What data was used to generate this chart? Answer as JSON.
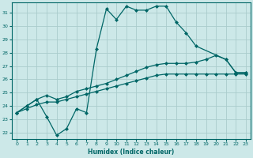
{
  "xlabel": "Humidex (Indice chaleur)",
  "bg_color": "#cce8e8",
  "grid_color": "#aacccc",
  "line_color": "#006666",
  "xlim": [
    -0.5,
    23.5
  ],
  "ylim": [
    21.5,
    31.8
  ],
  "yticks": [
    22,
    23,
    24,
    25,
    26,
    27,
    28,
    29,
    30,
    31
  ],
  "xticks": [
    0,
    1,
    2,
    3,
    4,
    5,
    6,
    7,
    8,
    9,
    10,
    11,
    12,
    13,
    14,
    15,
    16,
    17,
    18,
    19,
    20,
    21,
    22,
    23
  ],
  "line1_x": [
    0,
    1,
    2,
    3,
    4,
    5,
    6,
    7,
    8,
    9,
    10,
    11,
    12,
    13,
    14,
    15,
    16,
    17,
    18,
    21,
    22,
    23
  ],
  "line1_y": [
    23.5,
    24.0,
    24.5,
    23.2,
    21.8,
    22.3,
    23.8,
    23.5,
    28.3,
    31.3,
    30.5,
    31.5,
    31.2,
    31.2,
    31.5,
    31.5,
    30.3,
    29.5,
    28.5,
    27.5,
    26.5,
    26.5
  ],
  "line2_x": [
    0,
    1,
    2,
    3,
    4,
    5,
    6,
    7,
    8,
    9,
    10,
    11,
    12,
    13,
    14,
    15,
    16,
    17,
    18,
    19,
    20,
    21,
    22,
    23
  ],
  "line2_y": [
    23.5,
    24.0,
    24.5,
    24.8,
    24.5,
    24.7,
    25.1,
    25.3,
    25.5,
    25.7,
    26.0,
    26.3,
    26.6,
    26.9,
    27.1,
    27.2,
    27.2,
    27.2,
    27.3,
    27.5,
    27.8,
    27.5,
    26.5,
    26.5
  ],
  "line3_x": [
    0,
    1,
    2,
    3,
    4,
    5,
    6,
    7,
    8,
    9,
    10,
    11,
    12,
    13,
    14,
    15,
    16,
    17,
    18,
    19,
    20,
    21,
    22,
    23
  ],
  "line3_y": [
    23.5,
    23.8,
    24.1,
    24.3,
    24.3,
    24.5,
    24.7,
    24.9,
    25.1,
    25.3,
    25.5,
    25.7,
    25.9,
    26.1,
    26.3,
    26.4,
    26.4,
    26.4,
    26.4,
    26.4,
    26.4,
    26.4,
    26.4,
    26.4
  ]
}
